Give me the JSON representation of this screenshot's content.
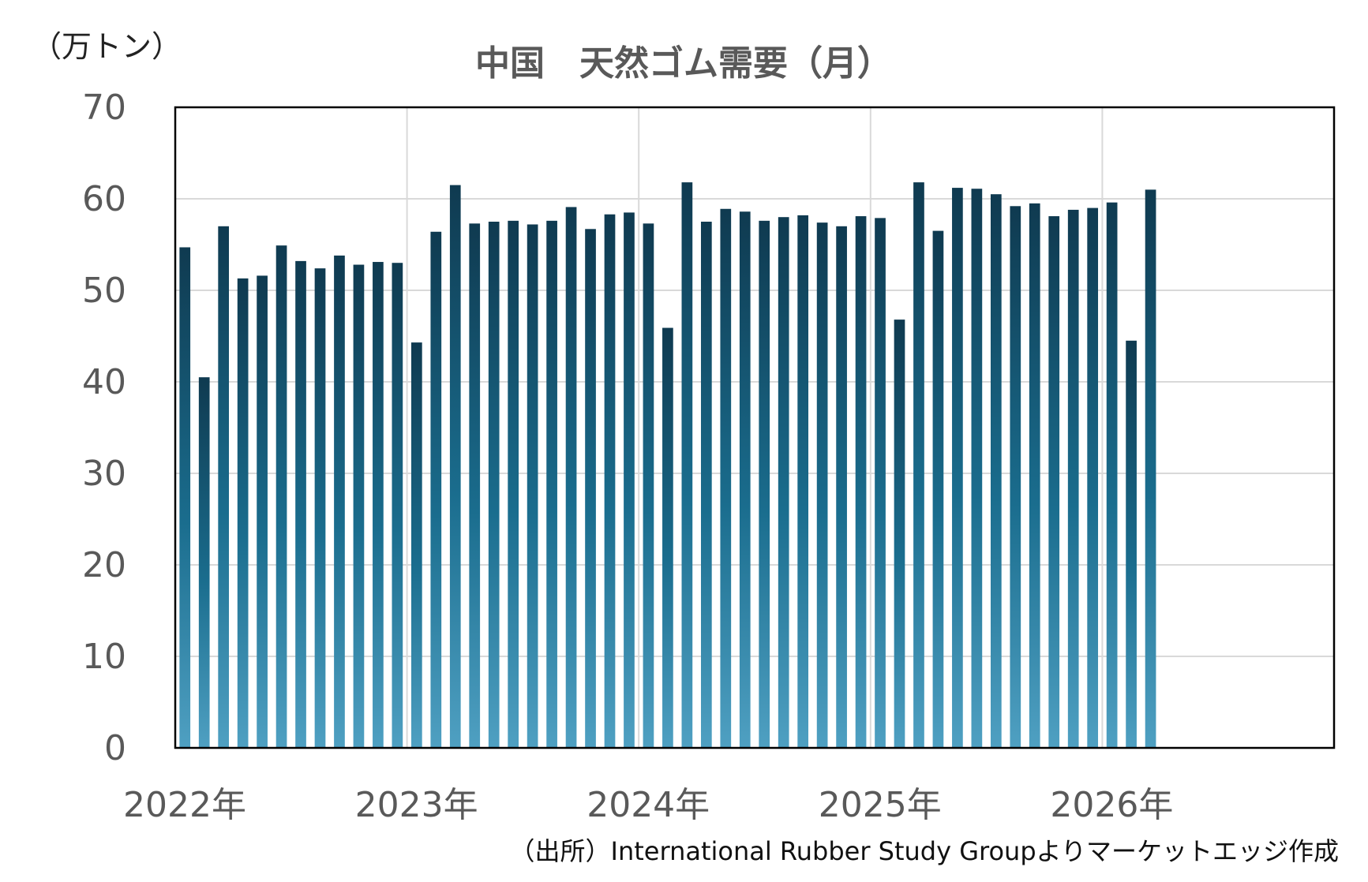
{
  "chart_data": {
    "type": "bar",
    "title": "中国　天然ゴム需要（月）",
    "ylabel": "（万トン）",
    "source": "（出所）International Rubber Study Groupよりマーケットエッジ作成",
    "ylim": [
      0,
      70
    ],
    "yticks": [
      "0",
      "10",
      "20",
      "30",
      "40",
      "50",
      "60",
      "70"
    ],
    "xticks": [
      "2022年",
      "2023年",
      "2024年",
      "2025年",
      "2026年"
    ],
    "grid": true,
    "colors": {
      "bar_top": "#0f3a50",
      "bar_mid": "#1a6d8e",
      "bar_bottom": "#4fa0c2",
      "text": "#595959"
    },
    "values": [
      54.7,
      40.5,
      57.0,
      51.3,
      51.6,
      54.9,
      53.2,
      52.4,
      53.8,
      52.8,
      53.1,
      53.0,
      44.3,
      56.4,
      61.5,
      57.3,
      57.5,
      57.6,
      57.2,
      57.6,
      59.1,
      56.7,
      58.3,
      58.5,
      57.3,
      45.9,
      61.8,
      57.5,
      58.9,
      58.6,
      57.6,
      58.0,
      58.2,
      57.4,
      57.0,
      58.1,
      57.9,
      46.8,
      61.8,
      56.5,
      61.2,
      61.1,
      60.5,
      59.2,
      59.5,
      58.1,
      58.8,
      59.0,
      59.6,
      44.5,
      61.0
    ]
  }
}
